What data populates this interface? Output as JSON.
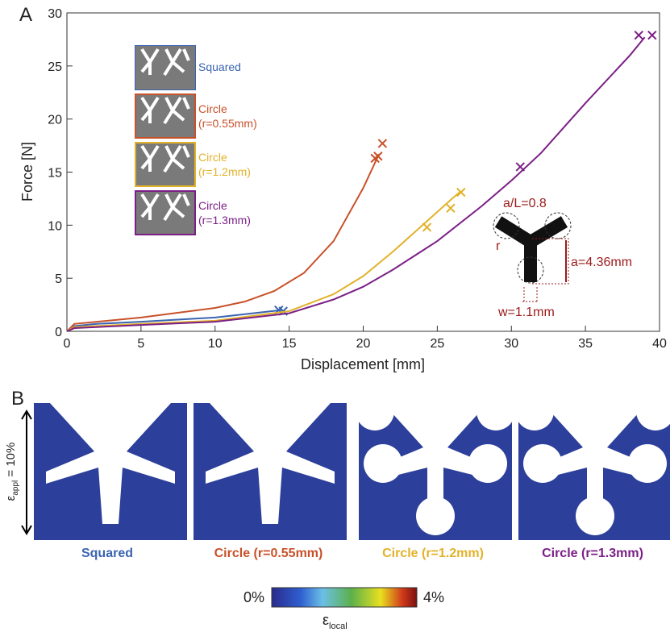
{
  "chart_data": {
    "type": "line",
    "panel_label": "A",
    "x_label": "Displacement [mm]",
    "y_label": "Force [N]",
    "xlim": [
      0,
      40
    ],
    "ylim": [
      0,
      30
    ],
    "xticks": [
      0,
      5,
      10,
      15,
      20,
      25,
      30,
      35,
      40
    ],
    "yticks": [
      0,
      5,
      10,
      15,
      20,
      25,
      30
    ],
    "series": [
      {
        "name": "Squared",
        "color": "#3a64b0",
        "x": [
          0,
          0.5,
          2,
          5,
          10,
          14.5
        ],
        "values": [
          0,
          0.5,
          0.7,
          0.9,
          1.3,
          2.0
        ],
        "failure_x": [
          14.3,
          14.6
        ],
        "failure_y": [
          2.0,
          1.9
        ]
      },
      {
        "name": "Circle (r=0.55mm)",
        "color": "#c8512a",
        "x": [
          0,
          0.5,
          5,
          10,
          12,
          14,
          16,
          18,
          20,
          21
        ],
        "values": [
          0,
          0.7,
          1.3,
          2.2,
          2.8,
          3.8,
          5.5,
          8.5,
          13.5,
          16.5
        ],
        "failure_x": [
          20.8,
          21,
          21.3
        ],
        "failure_y": [
          16.3,
          16.5,
          17.7
        ]
      },
      {
        "name": "Circle (r=1.2mm)",
        "color": "#e2b22a",
        "x": [
          0,
          0.5,
          5,
          10,
          15,
          18,
          20,
          22,
          24,
          26,
          26.5
        ],
        "values": [
          0,
          0.4,
          0.7,
          1.0,
          1.9,
          3.5,
          5.2,
          7.5,
          10,
          12.5,
          13.1
        ],
        "failure_x": [
          24.3,
          25.9,
          26.6
        ],
        "failure_y": [
          9.8,
          11.6,
          13.1
        ]
      },
      {
        "name": "Circle (r=1.3mm)",
        "color": "#7b1f86",
        "x": [
          0,
          0.5,
          5,
          10,
          15,
          18,
          20,
          22,
          25,
          28,
          30,
          32,
          35,
          38,
          39
        ],
        "values": [
          0,
          0.3,
          0.6,
          0.9,
          1.7,
          3,
          4.2,
          5.8,
          8.5,
          11.8,
          14.2,
          16.8,
          21.5,
          26,
          27.7
        ],
        "failure_x": [
          30.6,
          38.6,
          39.5
        ],
        "failure_y": [
          15.5,
          27.9,
          27.9
        ]
      }
    ],
    "annotations": [
      "a/L=0.8",
      "r",
      "a=4.36mm",
      "w=1.1mm"
    ]
  },
  "panel_b": {
    "panel_label": "B",
    "captions": [
      "Squared",
      "Circle (r=0.55mm)",
      "Circle (r=1.2mm)",
      "Circle (r=1.3mm)"
    ],
    "strain_symbol": "ε",
    "strain_subscript": "appl",
    "strain_text": " = 10%",
    "colorbar_min": "0%",
    "colorbar_max": "4%",
    "colorbar_symbol": "ε",
    "colorbar_subscript": "local"
  }
}
